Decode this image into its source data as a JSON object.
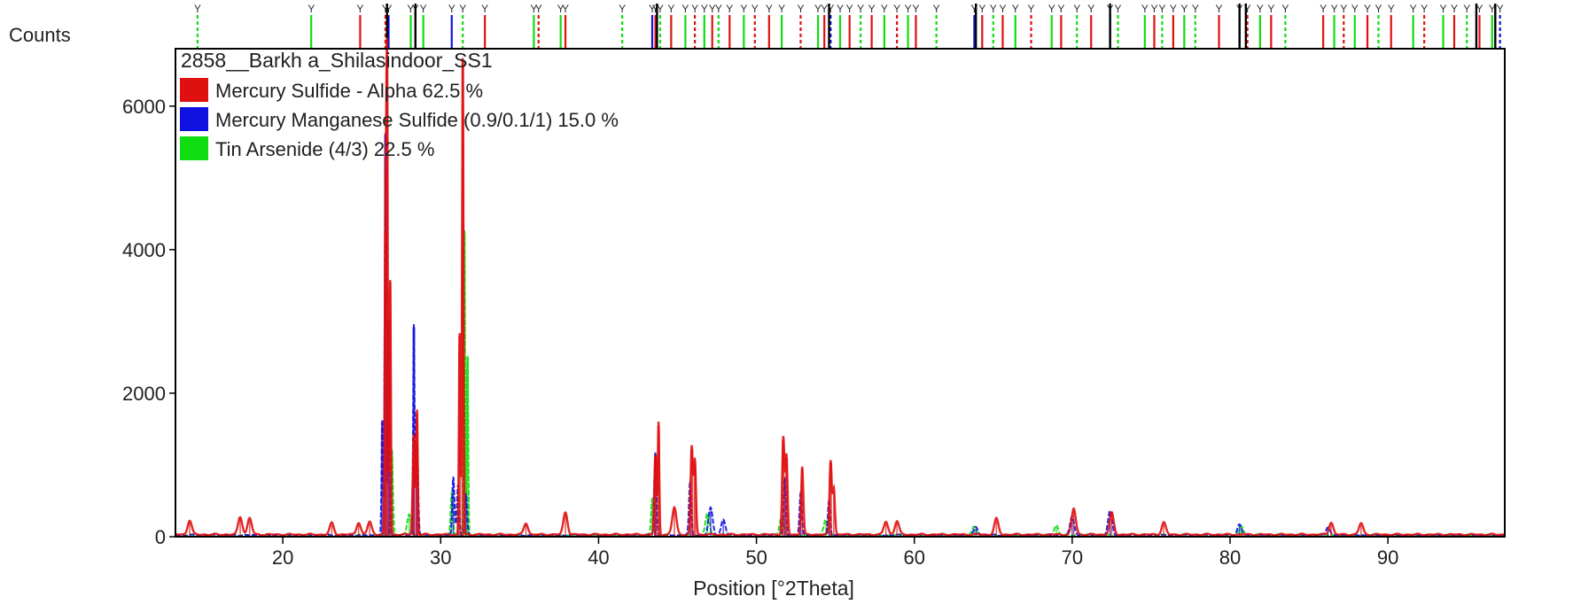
{
  "chart_data": {
    "type": "line",
    "title": "2858__Barkh a_Shilasindoor_SS1",
    "xlabel": "Position [°2Theta]",
    "ylabel": "Counts",
    "xlim": [
      13.2,
      97.4
    ],
    "ylim": [
      0,
      6800
    ],
    "xticks": [
      20,
      30,
      40,
      50,
      60,
      70,
      80,
      90
    ],
    "yticks": [
      0,
      2000,
      4000,
      6000
    ],
    "xtick_labels": [
      "20",
      "30",
      "40",
      "50",
      "60",
      "70",
      "80",
      "90"
    ],
    "ytick_labels": [
      "0",
      "2000",
      "4000",
      "6000"
    ],
    "legend_position": "top-left",
    "series": [
      {
        "name": "Mercury Sulfide - Alpha 62.5 %",
        "color": "#e01010",
        "peaks": [
          {
            "x": 14.1,
            "y": 200
          },
          {
            "x": 17.3,
            "y": 250
          },
          {
            "x": 17.9,
            "y": 230
          },
          {
            "x": 23.1,
            "y": 160
          },
          {
            "x": 24.8,
            "y": 170
          },
          {
            "x": 25.5,
            "y": 180
          },
          {
            "x": 26.5,
            "y": 4250
          },
          {
            "x": 26.6,
            "y": 6700
          },
          {
            "x": 26.8,
            "y": 3550
          },
          {
            "x": 28.3,
            "y": 1400
          },
          {
            "x": 28.5,
            "y": 1720
          },
          {
            "x": 31.2,
            "y": 2800
          },
          {
            "x": 31.4,
            "y": 6640
          },
          {
            "x": 35.4,
            "y": 160
          },
          {
            "x": 37.9,
            "y": 310
          },
          {
            "x": 43.6,
            "y": 1100
          },
          {
            "x": 43.8,
            "y": 1550
          },
          {
            "x": 44.8,
            "y": 380
          },
          {
            "x": 45.9,
            "y": 1220
          },
          {
            "x": 46.1,
            "y": 1050
          },
          {
            "x": 51.7,
            "y": 1350
          },
          {
            "x": 51.9,
            "y": 1100
          },
          {
            "x": 52.9,
            "y": 950
          },
          {
            "x": 54.7,
            "y": 1030
          },
          {
            "x": 54.9,
            "y": 650
          },
          {
            "x": 58.2,
            "y": 180
          },
          {
            "x": 58.9,
            "y": 190
          },
          {
            "x": 65.2,
            "y": 220
          },
          {
            "x": 70.1,
            "y": 360
          },
          {
            "x": 72.5,
            "y": 300
          },
          {
            "x": 75.8,
            "y": 170
          },
          {
            "x": 86.4,
            "y": 170
          },
          {
            "x": 88.3,
            "y": 160
          }
        ]
      },
      {
        "name": "Mercury Manganese Sulfide (0.9/0.1/1) 15.0 %",
        "color": "#1010e0",
        "peaks": [
          {
            "x": 26.3,
            "y": 1600
          },
          {
            "x": 26.5,
            "y": 5600
          },
          {
            "x": 26.7,
            "y": 3000
          },
          {
            "x": 28.3,
            "y": 2920
          },
          {
            "x": 28.5,
            "y": 1250
          },
          {
            "x": 30.8,
            "y": 820
          },
          {
            "x": 31.1,
            "y": 700
          },
          {
            "x": 31.6,
            "y": 580
          },
          {
            "x": 43.6,
            "y": 1150
          },
          {
            "x": 45.8,
            "y": 750
          },
          {
            "x": 47.1,
            "y": 380
          },
          {
            "x": 47.9,
            "y": 220
          },
          {
            "x": 51.8,
            "y": 800
          },
          {
            "x": 52.8,
            "y": 600
          },
          {
            "x": 54.6,
            "y": 500
          },
          {
            "x": 63.9,
            "y": 110
          },
          {
            "x": 70.0,
            "y": 260
          },
          {
            "x": 72.4,
            "y": 330
          },
          {
            "x": 80.6,
            "y": 150
          },
          {
            "x": 86.2,
            "y": 120
          }
        ]
      },
      {
        "name": "Tin Arsenide (4/3) 22.5 %",
        "color": "#10dd10",
        "peaks": [
          {
            "x": 26.9,
            "y": 1200
          },
          {
            "x": 28.0,
            "y": 300
          },
          {
            "x": 30.7,
            "y": 600
          },
          {
            "x": 31.5,
            "y": 4250
          },
          {
            "x": 31.7,
            "y": 2500
          },
          {
            "x": 43.4,
            "y": 520
          },
          {
            "x": 46.9,
            "y": 300
          },
          {
            "x": 51.6,
            "y": 240
          },
          {
            "x": 54.4,
            "y": 220
          },
          {
            "x": 63.8,
            "y": 120
          },
          {
            "x": 69.0,
            "y": 140
          },
          {
            "x": 80.7,
            "y": 130
          }
        ]
      }
    ],
    "reference_markers": {
      "label_glyph": "Y",
      "stacked_marker_color": "#000000",
      "positions": [
        {
          "x": 14.6,
          "s": 2
        },
        {
          "x": 21.8,
          "s": 2
        },
        {
          "x": 24.9,
          "s": 0
        },
        {
          "x": 26.5,
          "s": 0
        },
        {
          "x": 26.7,
          "s": 1
        },
        {
          "x": 28.1,
          "s": 2
        },
        {
          "x": 28.4,
          "s": 0
        },
        {
          "x": 28.9,
          "s": 2
        },
        {
          "x": 30.7,
          "s": 1
        },
        {
          "x": 31.4,
          "s": 2
        },
        {
          "x": 32.8,
          "s": 0
        },
        {
          "x": 35.9,
          "s": 2
        },
        {
          "x": 36.2,
          "s": 0
        },
        {
          "x": 37.6,
          "s": 2
        },
        {
          "x": 37.9,
          "s": 0
        },
        {
          "x": 41.5,
          "s": 2
        },
        {
          "x": 43.4,
          "s": 1
        },
        {
          "x": 43.6,
          "s": 0
        },
        {
          "x": 43.9,
          "s": 2
        },
        {
          "x": 44.6,
          "s": 0
        },
        {
          "x": 45.5,
          "s": 2
        },
        {
          "x": 46.1,
          "s": 0
        },
        {
          "x": 46.7,
          "s": 2
        },
        {
          "x": 47.2,
          "s": 0
        },
        {
          "x": 47.6,
          "s": 2
        },
        {
          "x": 48.3,
          "s": 0
        },
        {
          "x": 49.2,
          "s": 2
        },
        {
          "x": 49.9,
          "s": 0
        },
        {
          "x": 50.8,
          "s": 0
        },
        {
          "x": 51.6,
          "s": 2
        },
        {
          "x": 52.8,
          "s": 0
        },
        {
          "x": 53.9,
          "s": 2
        },
        {
          "x": 54.3,
          "s": 0
        },
        {
          "x": 54.7,
          "s": 1
        },
        {
          "x": 55.3,
          "s": 2
        },
        {
          "x": 55.9,
          "s": 0
        },
        {
          "x": 56.6,
          "s": 2
        },
        {
          "x": 57.3,
          "s": 0
        },
        {
          "x": 58.1,
          "s": 2
        },
        {
          "x": 58.9,
          "s": 0
        },
        {
          "x": 59.6,
          "s": 2
        },
        {
          "x": 60.1,
          "s": 0
        },
        {
          "x": 61.4,
          "s": 2
        },
        {
          "x": 63.8,
          "s": 1
        },
        {
          "x": 64.3,
          "s": 0
        },
        {
          "x": 65.0,
          "s": 2
        },
        {
          "x": 65.6,
          "s": 0
        },
        {
          "x": 66.4,
          "s": 2
        },
        {
          "x": 67.4,
          "s": 0
        },
        {
          "x": 68.7,
          "s": 2
        },
        {
          "x": 69.3,
          "s": 0
        },
        {
          "x": 70.3,
          "s": 2
        },
        {
          "x": 71.2,
          "s": 0
        },
        {
          "x": 72.4,
          "s": 1
        },
        {
          "x": 72.9,
          "s": 2
        },
        {
          "x": 74.6,
          "s": 2
        },
        {
          "x": 75.2,
          "s": 0
        },
        {
          "x": 75.7,
          "s": 2
        },
        {
          "x": 76.4,
          "s": 0
        },
        {
          "x": 77.1,
          "s": 2
        },
        {
          "x": 77.8,
          "s": 2
        },
        {
          "x": 79.3,
          "s": 0
        },
        {
          "x": 80.6,
          "s": 1
        },
        {
          "x": 81.1,
          "s": 0
        },
        {
          "x": 81.9,
          "s": 2
        },
        {
          "x": 82.6,
          "s": 0
        },
        {
          "x": 83.5,
          "s": 2
        },
        {
          "x": 85.9,
          "s": 0
        },
        {
          "x": 86.6,
          "s": 2
        },
        {
          "x": 87.2,
          "s": 0
        },
        {
          "x": 87.9,
          "s": 2
        },
        {
          "x": 88.7,
          "s": 0
        },
        {
          "x": 89.4,
          "s": 2
        },
        {
          "x": 90.2,
          "s": 0
        },
        {
          "x": 91.6,
          "s": 2
        },
        {
          "x": 92.3,
          "s": 0
        },
        {
          "x": 93.5,
          "s": 2
        },
        {
          "x": 94.2,
          "s": 0
        },
        {
          "x": 95.0,
          "s": 2
        },
        {
          "x": 95.8,
          "s": 0
        },
        {
          "x": 96.6,
          "s": 2
        },
        {
          "x": 97.1,
          "s": 1
        }
      ],
      "stacked_positions": [
        26.6,
        28.4,
        43.7,
        54.6,
        63.9,
        72.4,
        80.6,
        81.0,
        95.6,
        96.8
      ]
    }
  }
}
